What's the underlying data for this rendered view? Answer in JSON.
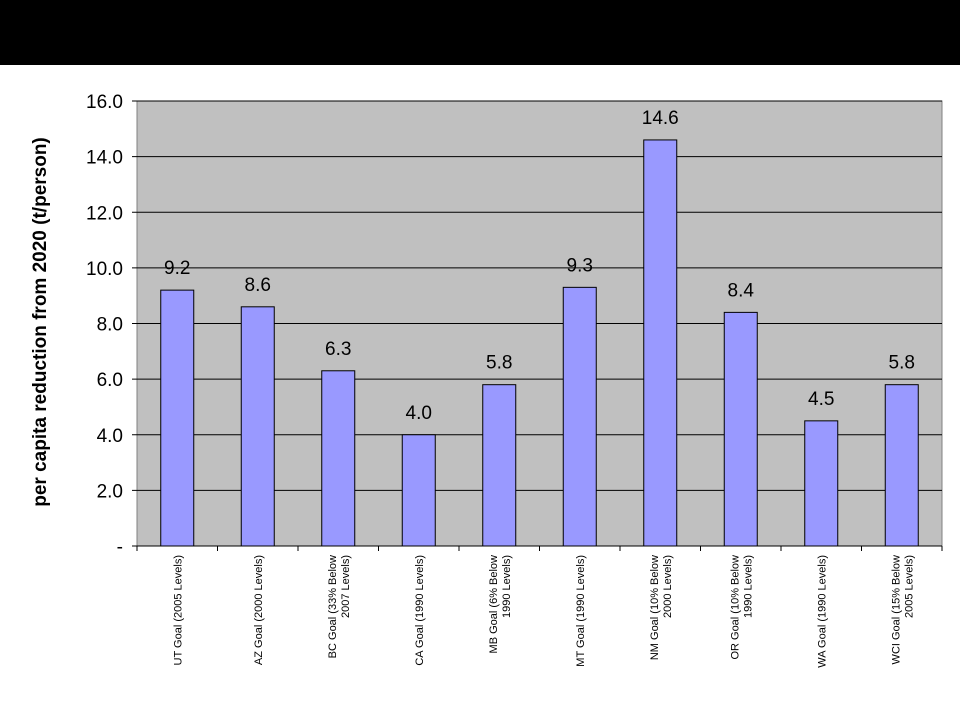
{
  "chart_data": {
    "type": "bar",
    "title": "",
    "xlabel": "",
    "ylabel": "per capita reduction from 2020 (t/person)",
    "ylim": [
      0,
      16
    ],
    "yticks": [
      "-",
      "2.0",
      "4.0",
      "6.0",
      "8.0",
      "10.0",
      "12.0",
      "14.0",
      "16.0"
    ],
    "ytick_values": [
      0,
      2,
      4,
      6,
      8,
      10,
      12,
      14,
      16
    ],
    "grid": true,
    "legend": "none",
    "categories": [
      [
        "UT Goal (2005 Levels)"
      ],
      [
        "AZ Goal (2000 Levels)"
      ],
      [
        "BC Goal (33% Below",
        "2007 Levels)"
      ],
      [
        "CA Goal (1990 Levels)"
      ],
      [
        "MB Goal (6% Below",
        "1990 Levels)"
      ],
      [
        "MT Goal (1990 Levels)"
      ],
      [
        "NM Goal (10% Below",
        "2000 Levels)"
      ],
      [
        "OR Goal (10% Below",
        "1990 Levels)"
      ],
      [
        "WA Goal (1990 Levels)"
      ],
      [
        "WCI Goal (15% Below",
        "2005 Levels)"
      ]
    ],
    "values": [
      9.2,
      8.6,
      6.3,
      4.0,
      5.8,
      9.3,
      14.6,
      8.4,
      4.5,
      5.8
    ],
    "data_labels": [
      "9.2",
      "8.6",
      "6.3",
      "4.0",
      "5.8",
      "9.3",
      "14.6",
      "8.4",
      "4.5",
      "5.8"
    ],
    "colors": {
      "plot_background": "#c0c0c0",
      "bar_fill": "#9999ff",
      "bar_stroke": "#000000",
      "gridline": "#000000",
      "header_bar": "#000000"
    }
  }
}
